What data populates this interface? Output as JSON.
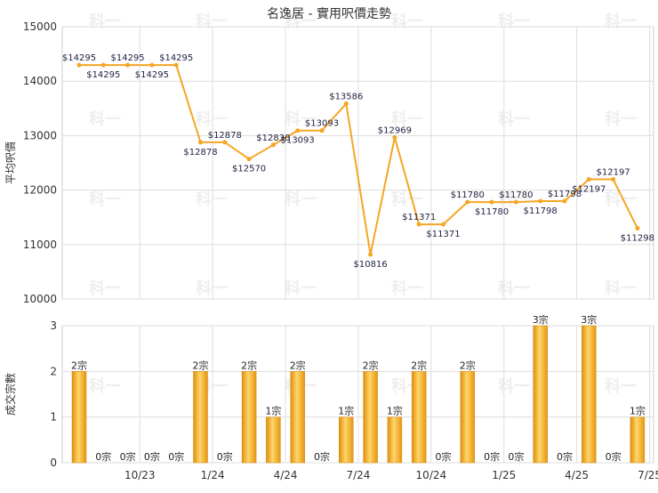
{
  "chart_data": [
    {
      "type": "line",
      "title": "名逸居 - 實用呎價走勢",
      "xlabel": "",
      "ylabel": "平均呎價",
      "ylim": [
        10000,
        15000
      ],
      "yticks": [
        "10000",
        "11000",
        "12000",
        "13000",
        "14000",
        "15000"
      ],
      "grid": true,
      "color": "#f5a623",
      "series": [
        {
          "name": "",
          "values": [
            14295,
            14295,
            14295,
            14295,
            14295,
            12878,
            12878,
            12570,
            12830,
            13093,
            13093,
            13586,
            10816,
            12969,
            11371,
            11371,
            11780,
            11780,
            11780,
            11798,
            11798,
            12197,
            12197,
            11298
          ],
          "labels": [
            "$14295",
            "$14295",
            "$14295",
            "$14295",
            "$14295",
            "$12878",
            "$12878",
            "$12570",
            "$12830",
            "$13093",
            "$13093",
            "$13586",
            "$10816",
            "$12969",
            "$11371",
            "$11371",
            "$11780",
            "$11780",
            "$11780",
            "$11798",
            "$11798",
            "$12197",
            "$12197",
            "$11298"
          ]
        }
      ]
    },
    {
      "type": "bar",
      "xlabel": "",
      "ylabel": "成交宗數",
      "ylim": [
        0,
        3
      ],
      "yticks": [
        "0",
        "1",
        "2",
        "3"
      ],
      "x_tick_labels": [
        "10/23",
        "1/24",
        "4/24",
        "7/24",
        "10/24",
        "1/25",
        "4/25",
        "7/25"
      ],
      "grid": true,
      "color": "#f5a623",
      "values": [
        2,
        0,
        0,
        0,
        0,
        2,
        0,
        2,
        1,
        2,
        0,
        1,
        2,
        1,
        2,
        0,
        2,
        0,
        0,
        3,
        0,
        3,
        0,
        1
      ],
      "labels": [
        "2宗",
        "0宗",
        "0宗",
        "0宗",
        "0宗",
        "2宗",
        "0宗",
        "2宗",
        "1宗",
        "2宗",
        "0宗",
        "1宗",
        "2宗",
        "1宗",
        "2宗",
        "0宗",
        "2宗",
        "0宗",
        "0宗",
        "3宗",
        "0宗",
        "3宗",
        "0宗",
        "1宗"
      ]
    }
  ],
  "watermark": "科一"
}
